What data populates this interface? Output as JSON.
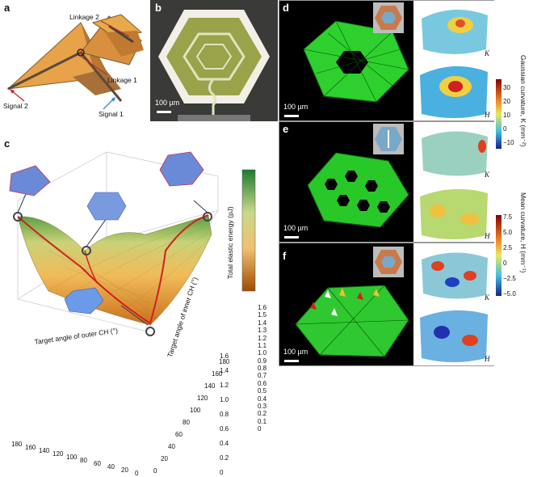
{
  "panel_a": {
    "label": "a",
    "linkage2": "Linkage 2",
    "linkage1": "Linkage 1",
    "signal2": "Signal 2",
    "signal1": "Signal 1",
    "colors": {
      "orange": "#e8a24a",
      "dark": "#5a4a3a",
      "red": "#c0282a",
      "blue": "#2a8ac8"
    }
  },
  "panel_b": {
    "label": "b",
    "scale": "100 µm"
  },
  "panel_c": {
    "label": "c",
    "x_axis_label": "Target angle of outer CH (°)",
    "y_axis_label": "Target angle of inner CH (°)",
    "z_axis_label": "Total elastic energy (pJ)",
    "x_ticks": [
      "180",
      "160",
      "140",
      "120",
      "100",
      "80",
      "60",
      "40",
      "20",
      "0"
    ],
    "y_ticks": [
      "0",
      "20",
      "40",
      "60",
      "80",
      "100",
      "120",
      "140",
      "160",
      "180"
    ],
    "z_ticks": [
      "0",
      "0.2",
      "0.4",
      "0.6",
      "0.8",
      "1.0",
      "1.2",
      "1.4",
      "1.6"
    ],
    "colorbar_ticks": [
      "1.6",
      "1.5",
      "1.4",
      "1.3",
      "1.2",
      "1.1",
      "1.0",
      "0.9",
      "0.8",
      "0.7",
      "0.6",
      "0.5",
      "0.4",
      "0.3",
      "0.2",
      "0.1",
      "0"
    ]
  },
  "panel_d": {
    "label": "d",
    "scale": "100 µm",
    "K": "K",
    "H": "H"
  },
  "panel_e": {
    "label": "e",
    "scale": "100 µm",
    "K": "K",
    "H": "H"
  },
  "panel_f": {
    "label": "f",
    "scale": "100 µm",
    "K": "K",
    "H": "H"
  },
  "colorbar_K": {
    "title": "Gaussian curvature, K (mm⁻²)",
    "ticks": [
      "30",
      "20",
      "10",
      "0",
      "−10"
    ]
  },
  "colorbar_H": {
    "title": "Mean curvature, H (mm⁻¹)",
    "ticks": [
      "7.5",
      "5.0",
      "2.5",
      "0",
      "−2.5",
      "−5.0"
    ]
  }
}
